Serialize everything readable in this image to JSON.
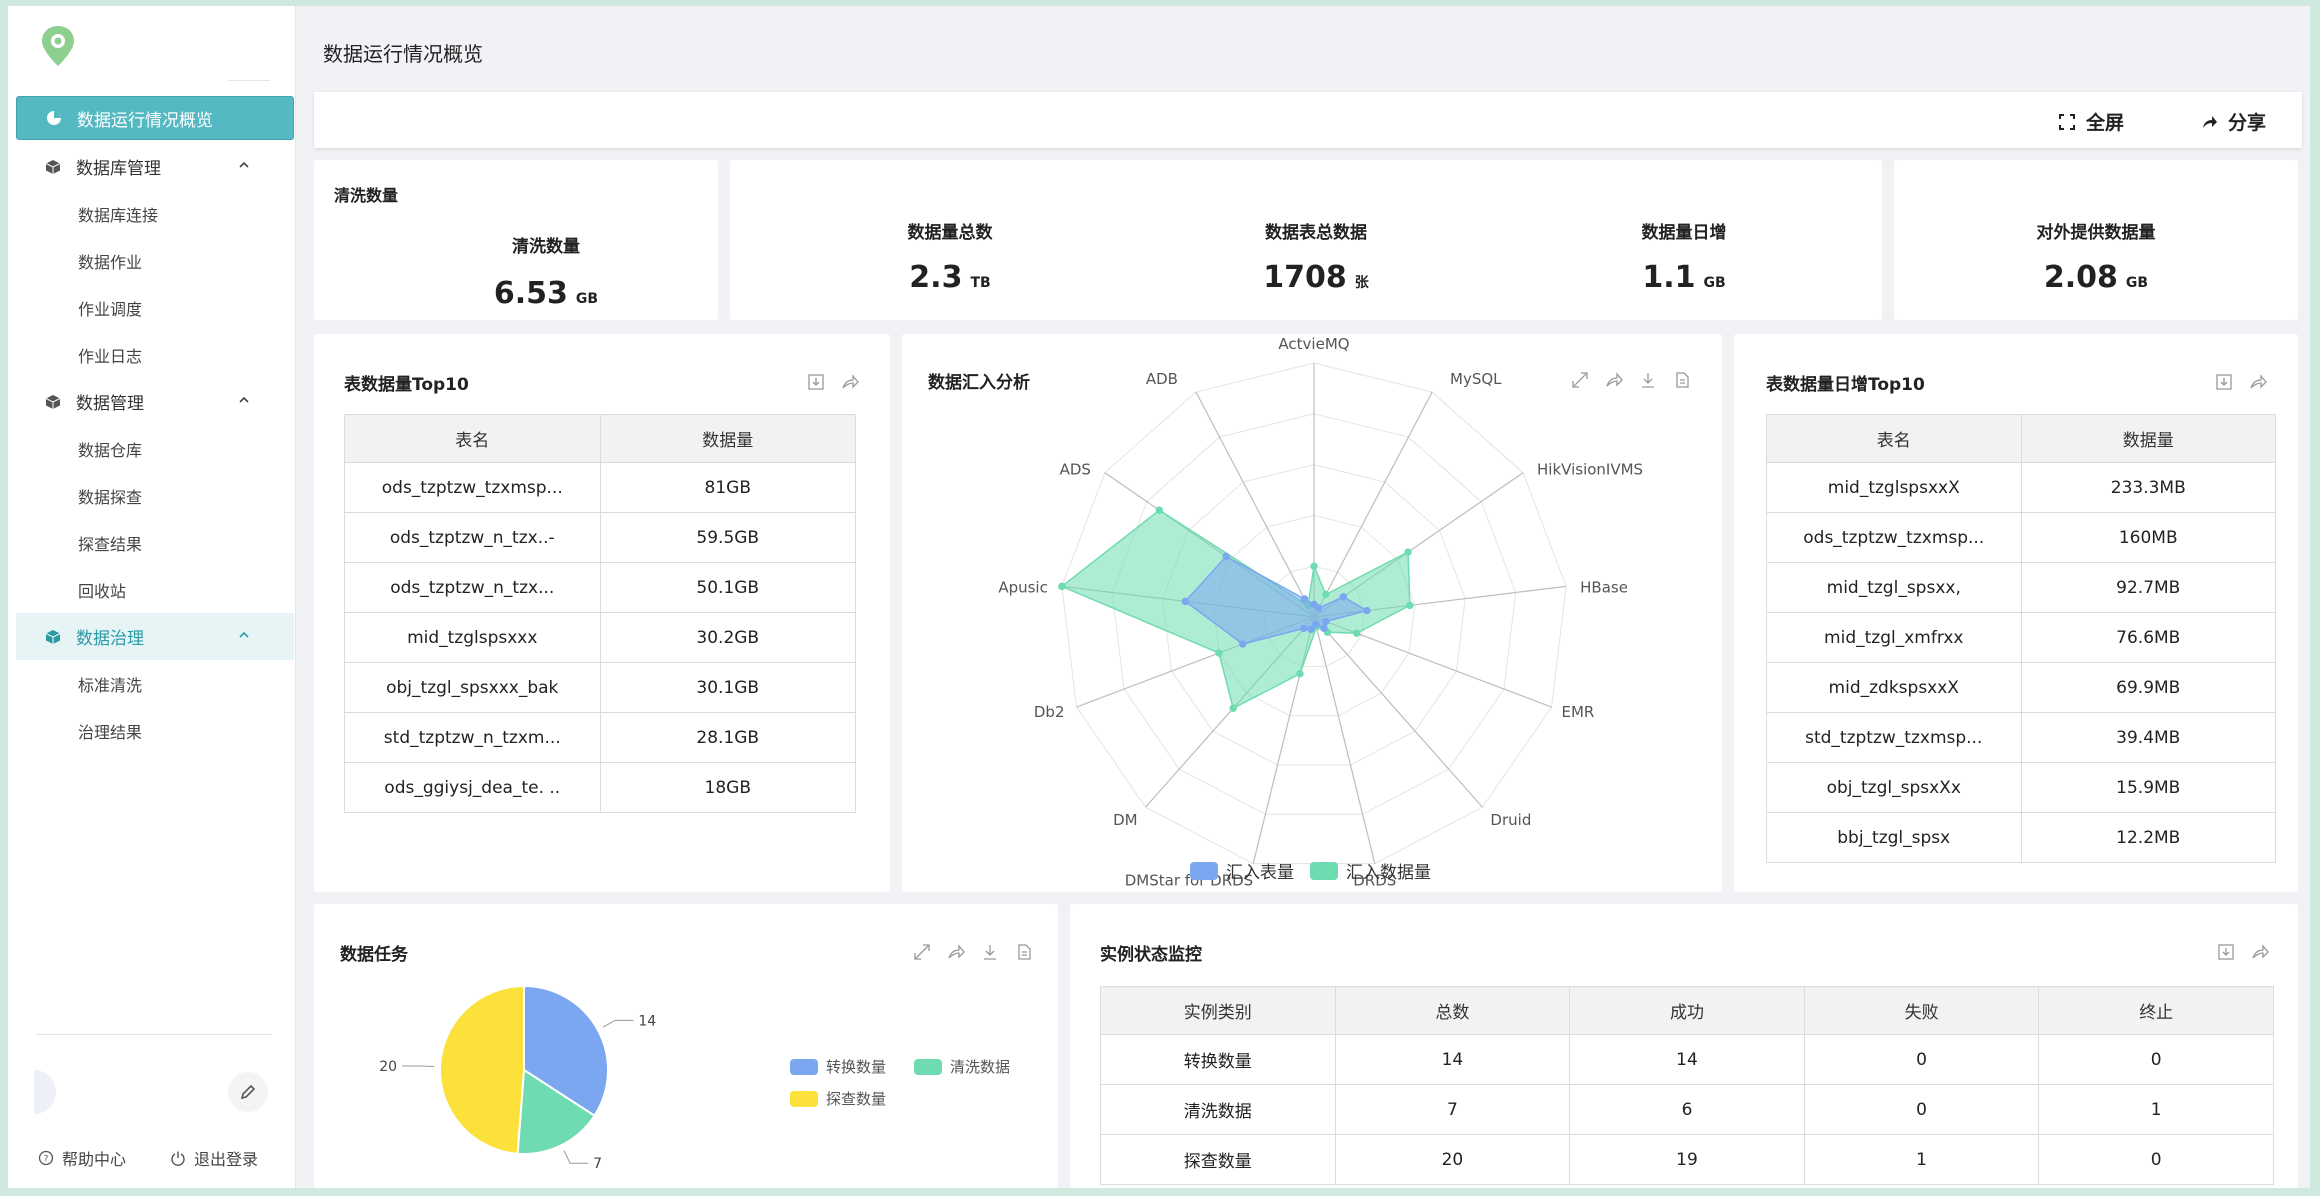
{
  "sidebar": {
    "items": [
      {
        "label": "数据运行情况概览",
        "type": "top",
        "state": "active",
        "icon": "pie-chart-icon"
      },
      {
        "label": "数据库管理",
        "type": "group",
        "icon": "cube-icon"
      },
      {
        "label": "数据库连接",
        "type": "sub"
      },
      {
        "label": "数据作业",
        "type": "sub"
      },
      {
        "label": "作业调度",
        "type": "sub"
      },
      {
        "label": "作业日志",
        "type": "sub"
      },
      {
        "label": "数据管理",
        "type": "group",
        "icon": "cube-icon"
      },
      {
        "label": "数据仓库",
        "type": "sub"
      },
      {
        "label": "数据探查",
        "type": "sub"
      },
      {
        "label": "探查结果",
        "type": "sub"
      },
      {
        "label": "回收站",
        "type": "sub"
      },
      {
        "label": "数据治理",
        "type": "group",
        "state": "open",
        "icon": "cube-icon"
      },
      {
        "label": "标准清洗",
        "type": "sub"
      },
      {
        "label": "治理结果",
        "type": "sub"
      }
    ],
    "help_label": "帮助中心",
    "logout_label": "退出登录"
  },
  "header": {
    "title": "数据运行情况概览",
    "fullscreen_label": "全屏",
    "share_label": "分享"
  },
  "stats": {
    "clean_card_title": "清洗数量",
    "clean_label": "清洗数量",
    "clean_value": "6.53",
    "clean_unit": "GB",
    "total_label": "数据量总数",
    "total_value": "2.3",
    "total_unit": "TB",
    "tables_label": "数据表总数据",
    "tables_value": "1708",
    "tables_unit": "张",
    "daily_label": "数据量日增",
    "daily_value": "1.1",
    "daily_unit": "GB",
    "external_label": "对外提供数据量",
    "external_value": "2.08",
    "external_unit": "GB"
  },
  "top10": {
    "title": "表数据量Top10",
    "columns": [
      "表名",
      "数据量"
    ],
    "rows": [
      [
        "ods_tzptzw_tzxmsp...",
        "81GB"
      ],
      [
        "ods_tzptzw_n_tzx..-",
        "59.5GB"
      ],
      [
        "ods_tzptzw_n_tzx...",
        "50.1GB"
      ],
      [
        "mid_tzglspsxxx",
        "30.2GB"
      ],
      [
        "obj_tzgl_spsxxx_bak",
        "30.1GB"
      ],
      [
        "std_tzptzw_n_tzxm...",
        "28.1GB"
      ],
      [
        "ods_ggiysj_dea_te. ..",
        "18GB"
      ]
    ]
  },
  "radar": {
    "title": "数据汇入分析",
    "colors": {
      "series1": "#7aa7f0",
      "series2": "#6edcb0"
    }
  },
  "chart_data": [
    {
      "type": "radar",
      "title": "数据汇入分析",
      "categories": [
        "ActvieMQ",
        "MySQL",
        "HikVisionIVMS",
        "HBase",
        "EMR",
        "Druid",
        "DRDS",
        "DMStar for DRDS",
        "DM",
        "Db2",
        "Apusic",
        "ADS",
        "ADB"
      ],
      "max": 100,
      "series": [
        {
          "name": "汇入表量",
          "values": [
            5,
            4,
            14,
            21,
            5,
            6,
            3,
            5,
            6,
            30,
            51,
            42,
            8
          ]
        },
        {
          "name": "汇入数据量",
          "values": [
            20,
            10,
            45,
            38,
            18,
            8,
            4,
            23,
            48,
            40,
            100,
            74,
            5
          ]
        }
      ],
      "legend": "bottom"
    },
    {
      "type": "pie",
      "title": "数据任务",
      "labels": [
        "转换数量",
        "清洗数据",
        "探查数量"
      ],
      "values": [
        14,
        7,
        20
      ],
      "colors": [
        "#7aa7f0",
        "#6edcb0",
        "#fbe13a"
      ],
      "legend": "right"
    }
  ],
  "daily_top10": {
    "title": "表数据量日增Top10",
    "columns": [
      "表名",
      "数据量"
    ],
    "rows": [
      [
        "mid_tzglspsxxX",
        "233.3MB"
      ],
      [
        "ods_tzptzw_tzxmsp...",
        "160MB"
      ],
      [
        "mid_tzgl_spsxx,",
        "92.7MB"
      ],
      [
        "mid_tzgl_xmfrxx",
        "76.6MB"
      ],
      [
        "mid_zdkspsxxX",
        "69.9MB"
      ],
      [
        "std_tzptzw_tzxmsp...",
        "39.4MB"
      ],
      [
        "obj_tzgl_spsxXx",
        "15.9MB"
      ],
      [
        "bbj_tzgl_spsx",
        "12.2MB"
      ]
    ]
  },
  "tasks": {
    "title": "数据任务"
  },
  "monitor": {
    "title": "实例状态监控",
    "columns": [
      "实例类别",
      "总数",
      "成功",
      "失败",
      "终止"
    ],
    "rows": [
      [
        "转换数量",
        "14",
        "14",
        "0",
        "0"
      ],
      [
        "清洗数据",
        "7",
        "6",
        "0",
        "1"
      ],
      [
        "探查数量",
        "20",
        "19",
        "1",
        "0"
      ]
    ]
  }
}
